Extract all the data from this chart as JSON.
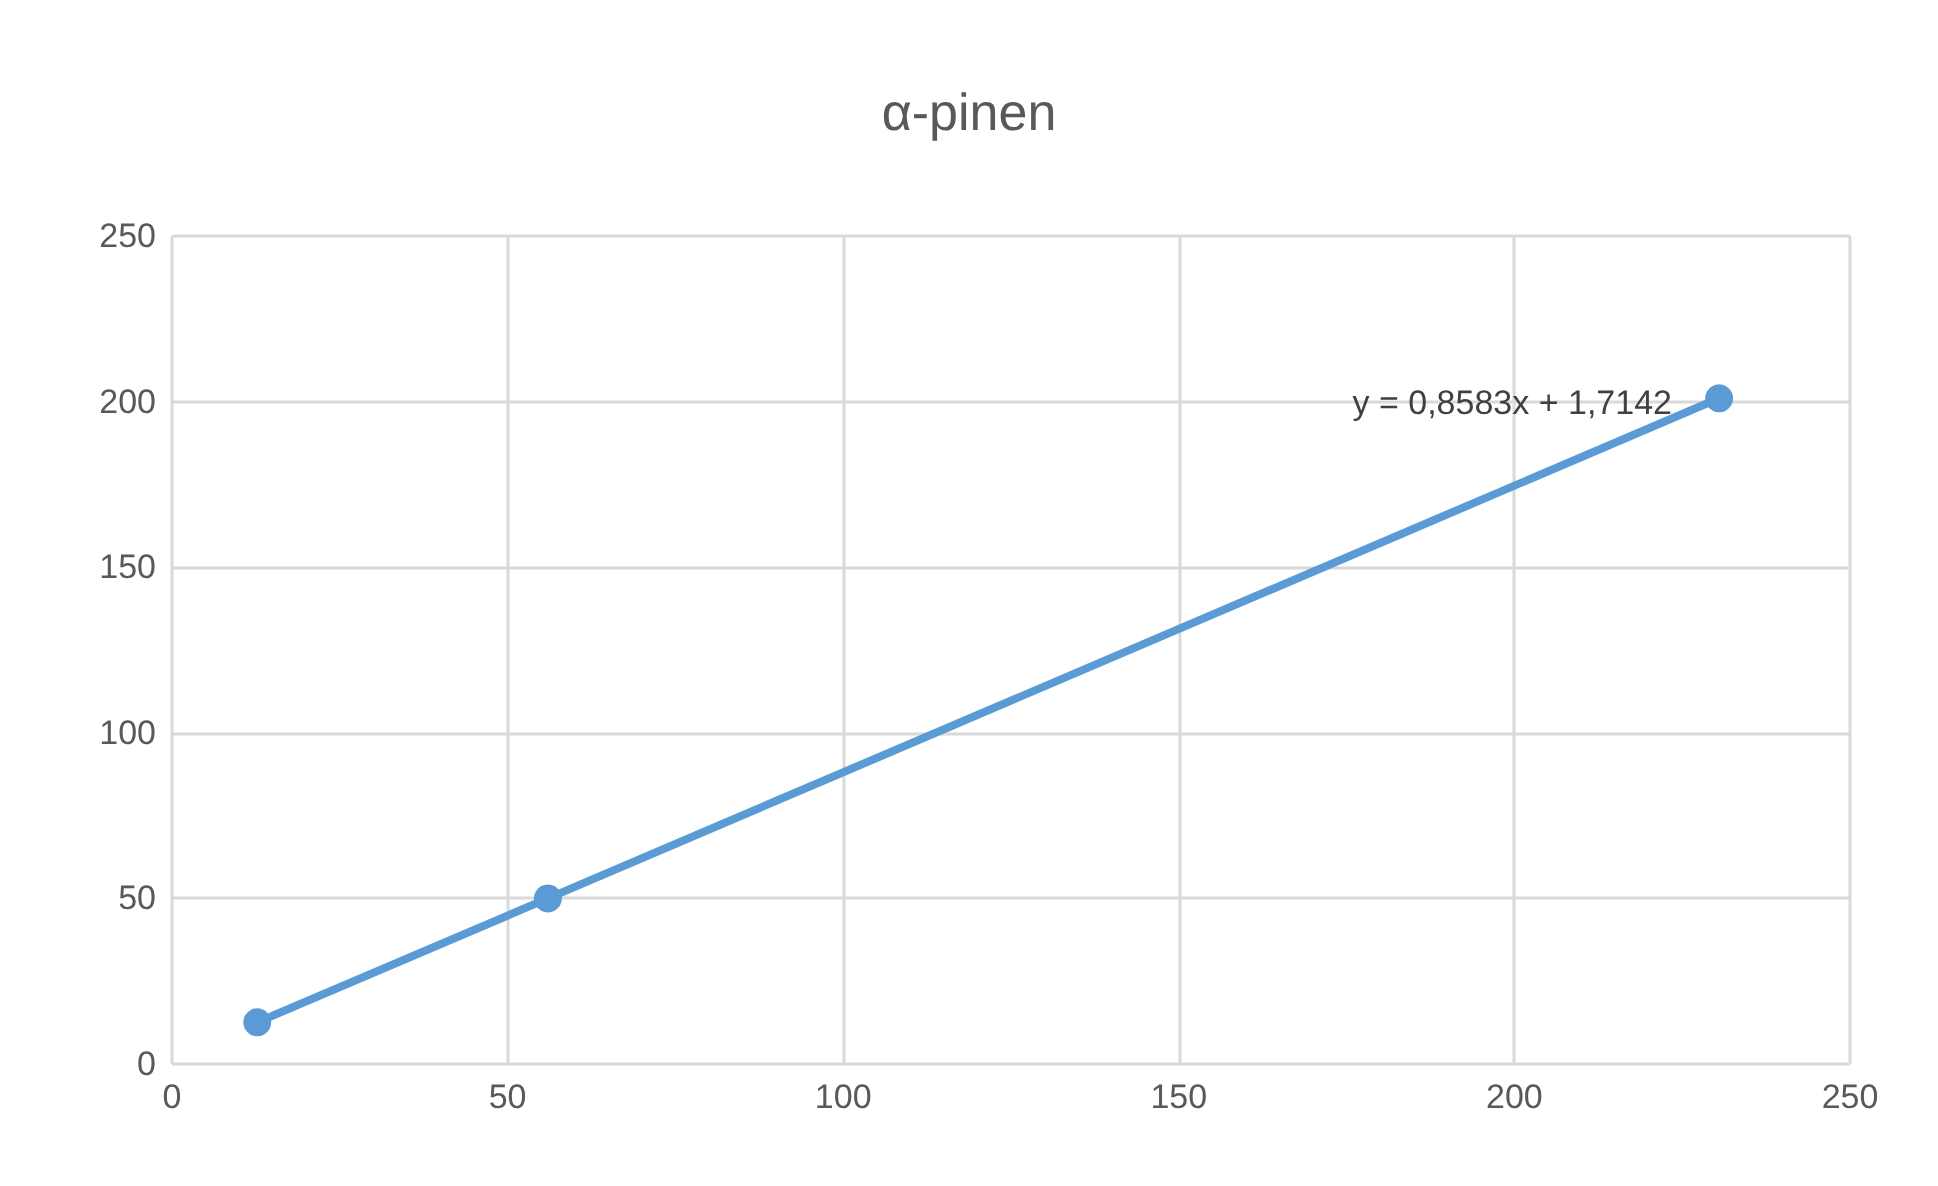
{
  "chart_data": {
    "type": "line",
    "title": "α-pinen",
    "x": [
      12.7,
      56,
      230.5
    ],
    "series": [
      {
        "color": "#5b9bd5",
        "values": [
          12.6,
          50,
          201
        ]
      }
    ],
    "xlim": [
      0,
      250
    ],
    "xticks": [
      0,
      50,
      100,
      150,
      200,
      250
    ],
    "ylim": [
      0,
      250
    ],
    "yticks": [
      0,
      50,
      100,
      150,
      200,
      250
    ],
    "grid": true,
    "marker": "circle",
    "line_style": "solid",
    "annotations": [
      "y = 0,8583x + 1,7142"
    ]
  }
}
